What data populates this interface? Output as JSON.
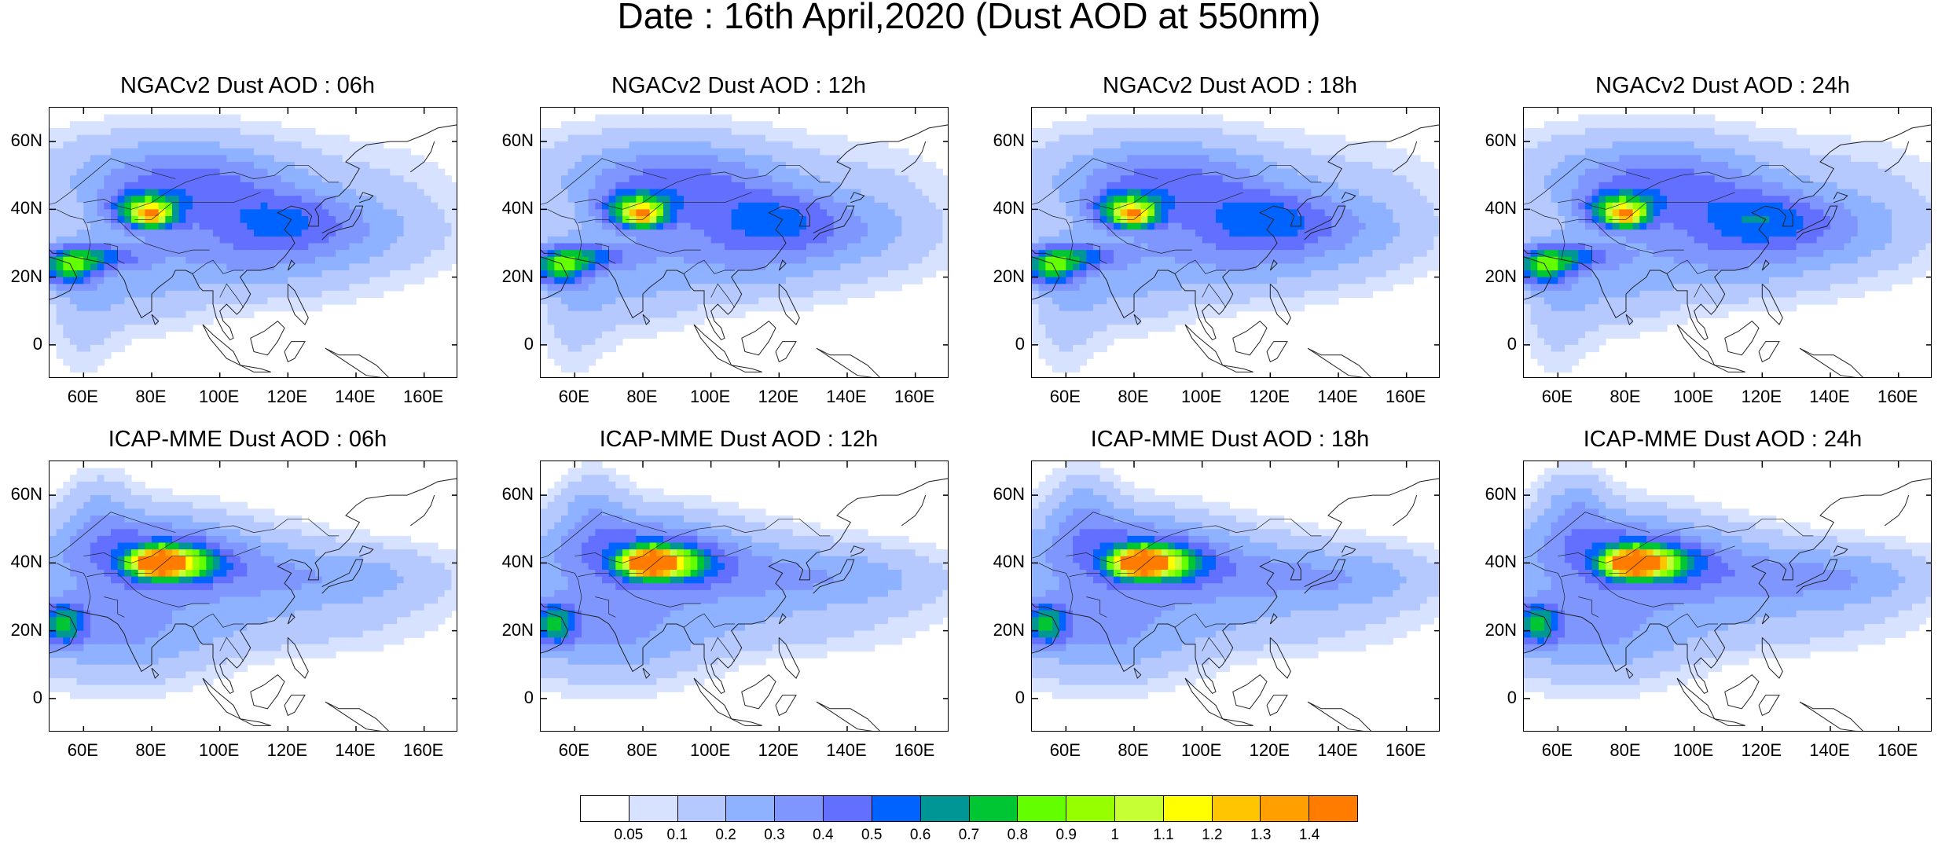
{
  "title": "Date : 16th April,2020 (Dust AOD at 550nm)",
  "panels": [
    {
      "title": "NGACv2 Dust AOD : 06h",
      "model": "NGACv2",
      "hour": 6
    },
    {
      "title": "NGACv2 Dust AOD : 12h",
      "model": "NGACv2",
      "hour": 12
    },
    {
      "title": "NGACv2 Dust AOD : 18h",
      "model": "NGACv2",
      "hour": 18
    },
    {
      "title": "NGACv2 Dust AOD : 24h",
      "model": "NGACv2",
      "hour": 24
    },
    {
      "title": "ICAP-MME Dust AOD : 06h",
      "model": "ICAP-MME",
      "hour": 6
    },
    {
      "title": "ICAP-MME Dust AOD : 12h",
      "model": "ICAP-MME",
      "hour": 12
    },
    {
      "title": "ICAP-MME Dust AOD : 18h",
      "model": "ICAP-MME",
      "hour": 18
    },
    {
      "title": "ICAP-MME Dust AOD : 24h",
      "model": "ICAP-MME",
      "hour": 24
    }
  ],
  "axes": {
    "lat_ticks": [
      "60N",
      "40N",
      "20N",
      "0"
    ],
    "lon_ticks": [
      "60E",
      "80E",
      "100E",
      "120E",
      "140E",
      "160E"
    ],
    "lon_range": [
      50,
      170
    ],
    "lat_range": [
      -10,
      70
    ]
  },
  "colorbar": {
    "labels": [
      "0.05",
      "0.1",
      "0.2",
      "0.3",
      "0.4",
      "0.5",
      "0.6",
      "0.7",
      "0.8",
      "0.9",
      "1",
      "1.1",
      "1.2",
      "1.3",
      "1.4"
    ],
    "colors": [
      "#ffffff",
      "#d6e2ff",
      "#b5c9ff",
      "#8eb2ff",
      "#7f96ff",
      "#6370ff",
      "#0063ff",
      "#009696",
      "#00c633",
      "#63ff00",
      "#96ff00",
      "#c6ff33",
      "#ffff00",
      "#ffc600",
      "#ffa000",
      "#ff7c00",
      "#ff1900"
    ]
  }
}
